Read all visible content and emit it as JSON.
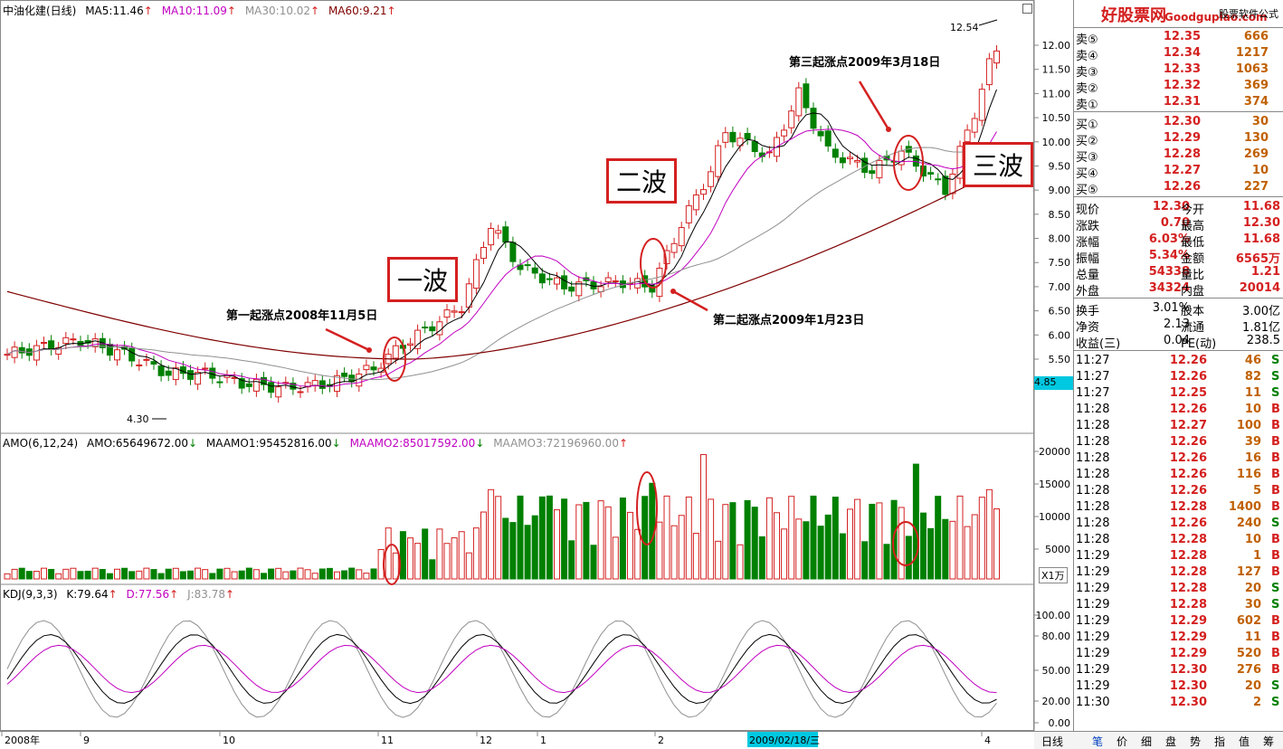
{
  "stock": {
    "name": "中油化建(日线)",
    "ma5": "MA5:11.46",
    "ma10": "MA10:11.09",
    "ma30": "MA30:10.02",
    "ma60": "MA60:9.21"
  },
  "amo": {
    "label": "AMO(6,12,24)",
    "amo": "AMO:65649672.00",
    "maamo1": "MAAMO1:95452816.00",
    "maamo2": "MAAMO2:85017592.00",
    "maamo3": "MAAMO3:72196960.00",
    "unit": "X1万",
    "y_ticks": [
      "20000",
      "15000",
      "10000",
      "5000"
    ]
  },
  "kdj": {
    "label": "KDJ(9,3,3)",
    "k": "K:79.64",
    "d": "D:77.56",
    "j": "J:83.78",
    "y_ticks": [
      "100.00",
      "80.00",
      "50.00",
      "20.00",
      "0.00"
    ]
  },
  "price_axis": [
    "12.00",
    "11.50",
    "11.00",
    "10.50",
    "10.00",
    "9.50",
    "9.00",
    "8.50",
    "8.00",
    "7.50",
    "7.00",
    "6.50",
    "6.00",
    "5.50"
  ],
  "price_marker": "4.85",
  "low_label": "4.30",
  "high_label": "12.54",
  "annotations": {
    "wave1": "一波",
    "wave2": "二波",
    "wave3": "三波",
    "point1": "第一起涨点2008年11月5日",
    "point2": "第二起涨点2009年1月23日",
    "point3": "第三起涨点2009年3月18日"
  },
  "x_axis": [
    "2008年",
    "9",
    "10",
    "11",
    "12",
    "1",
    "2",
    "4"
  ],
  "selected_date": "2009/02/18/三",
  "side": {
    "watermark": "好股票网",
    "watermark_site": "Goodgupiao.com",
    "brand": "股票软件公式",
    "asks": [
      {
        "label": "卖⑤",
        "price": "12.35",
        "vol": "666"
      },
      {
        "label": "卖④",
        "price": "12.34",
        "vol": "1217"
      },
      {
        "label": "卖③",
        "price": "12.33",
        "vol": "1063"
      },
      {
        "label": "卖②",
        "price": "12.32",
        "vol": "369"
      },
      {
        "label": "卖①",
        "price": "12.31",
        "vol": "374"
      }
    ],
    "bids": [
      {
        "label": "买①",
        "price": "12.30",
        "vol": "30"
      },
      {
        "label": "买②",
        "price": "12.29",
        "vol": "130"
      },
      {
        "label": "买③",
        "price": "12.28",
        "vol": "269"
      },
      {
        "label": "买④",
        "price": "12.27",
        "vol": "10"
      },
      {
        "label": "买⑤",
        "price": "12.26",
        "vol": "227"
      }
    ],
    "stats": [
      {
        "l1": "现价",
        "v1": "12.30",
        "l2": "今开",
        "v2": "11.68"
      },
      {
        "l1": "涨跌",
        "v1": "0.70",
        "l2": "最高",
        "v2": "12.30"
      },
      {
        "l1": "涨幅",
        "v1": "6.03%",
        "l2": "最低",
        "v2": "11.68"
      },
      {
        "l1": "振幅",
        "v1": "5.34%",
        "l2": "金额",
        "v2": "6565万"
      },
      {
        "l1": "总量",
        "v1": "54338",
        "l2": "量比",
        "v2": "1.21"
      },
      {
        "l1": "外盘",
        "v1": "34324",
        "l2": "内盘",
        "v2": "20014"
      }
    ],
    "fund": [
      {
        "l1": "换手",
        "v1": "3.01%",
        "l2": "股本",
        "v2": "3.00亿"
      },
      {
        "l1": "净资",
        "v1": "2.13",
        "l2": "流通",
        "v2": "1.81亿"
      },
      {
        "l1": "收益(三)",
        "v1": "0.04",
        "l2": "PE(动)",
        "v2": "238.5"
      }
    ],
    "ticks": [
      {
        "t": "11:27",
        "p": "12.26",
        "v": "46",
        "s": "S"
      },
      {
        "t": "11:27",
        "p": "12.26",
        "v": "82",
        "s": "S"
      },
      {
        "t": "11:27",
        "p": "12.25",
        "v": "11",
        "s": "S"
      },
      {
        "t": "11:28",
        "p": "12.26",
        "v": "10",
        "s": "B"
      },
      {
        "t": "11:28",
        "p": "12.27",
        "v": "100",
        "s": "B"
      },
      {
        "t": "11:28",
        "p": "12.26",
        "v": "39",
        "s": "B"
      },
      {
        "t": "11:28",
        "p": "12.26",
        "v": "16",
        "s": "B"
      },
      {
        "t": "11:28",
        "p": "12.26",
        "v": "116",
        "s": "B"
      },
      {
        "t": "11:28",
        "p": "12.26",
        "v": "5",
        "s": "B"
      },
      {
        "t": "11:28",
        "p": "12.28",
        "v": "1400",
        "s": "B"
      },
      {
        "t": "11:28",
        "p": "12.26",
        "v": "240",
        "s": "S"
      },
      {
        "t": "11:28",
        "p": "12.28",
        "v": "10",
        "s": "B"
      },
      {
        "t": "11:29",
        "p": "12.28",
        "v": "1",
        "s": "B"
      },
      {
        "t": "11:29",
        "p": "12.28",
        "v": "127",
        "s": "B"
      },
      {
        "t": "11:29",
        "p": "12.28",
        "v": "20",
        "s": "S"
      },
      {
        "t": "11:29",
        "p": "12.28",
        "v": "30",
        "s": "S"
      },
      {
        "t": "11:29",
        "p": "12.29",
        "v": "602",
        "s": "B"
      },
      {
        "t": "11:29",
        "p": "12.29",
        "v": "11",
        "s": "B"
      },
      {
        "t": "11:29",
        "p": "12.29",
        "v": "520",
        "s": "B"
      },
      {
        "t": "11:29",
        "p": "12.30",
        "v": "276",
        "s": "B"
      },
      {
        "t": "11:29",
        "p": "12.30",
        "v": "20",
        "s": "S"
      },
      {
        "t": "11:30",
        "p": "12.30",
        "v": "2",
        "s": "S"
      }
    ],
    "tabs": [
      "日线",
      "笔",
      "价",
      "细",
      "盘",
      "势",
      "指",
      "值",
      "筹"
    ]
  },
  "colors": {
    "up": "#d42020",
    "down": "#008000",
    "ma5": "#000000",
    "ma10": "#c000c0",
    "ma30": "#909090",
    "ma60": "#800000"
  }
}
